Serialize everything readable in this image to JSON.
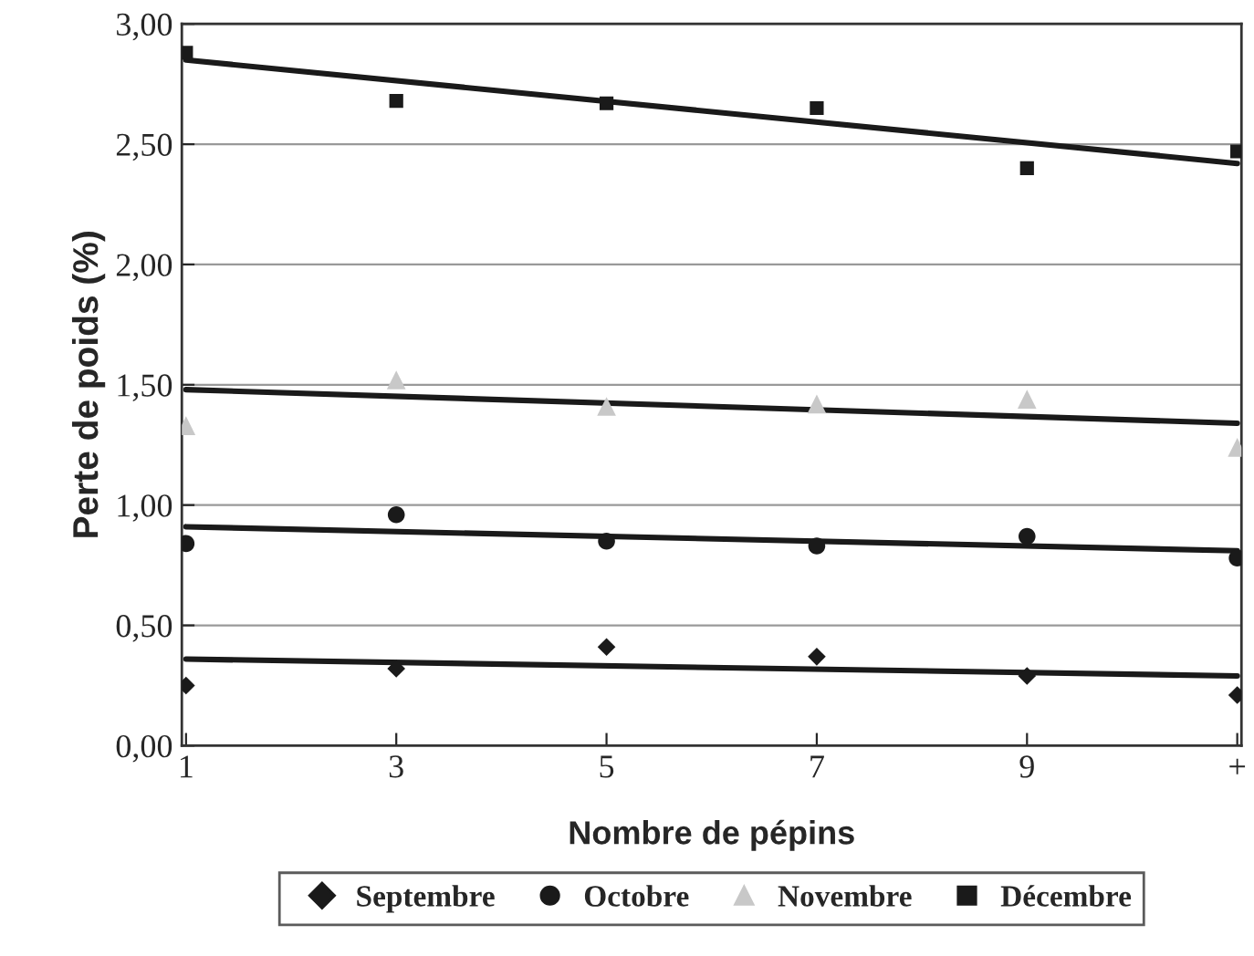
{
  "chart_data": {
    "type": "scatter",
    "xlabel": "Nombre de pépins",
    "ylabel": "Perte de poids (%)",
    "categories": [
      "1",
      "3",
      "5",
      "7",
      "9",
      "+"
    ],
    "series": [
      {
        "name": "Septembre",
        "color": "#1a1a1a",
        "marker": "diamond",
        "values": [
          0.25,
          0.32,
          0.41,
          0.37,
          0.29,
          0.21
        ]
      },
      {
        "name": "Octobre",
        "color": "#1a1a1a",
        "marker": "circle",
        "values": [
          0.84,
          0.96,
          0.85,
          0.83,
          0.87,
          0.78
        ]
      },
      {
        "name": "Novembre",
        "color": "#c8c8c8",
        "marker": "triangle",
        "values": [
          1.33,
          1.52,
          1.41,
          1.42,
          1.44,
          1.24
        ]
      },
      {
        "name": "Décembre",
        "color": "#1a1a1a",
        "marker": "square",
        "values": [
          2.88,
          2.68,
          2.67,
          2.65,
          2.4,
          2.47
        ]
      },
      {
        "type": "line",
        "color": "#1a1a1a",
        "x": [
          "1",
          "+"
        ],
        "values": [
          0.36,
          0.29
        ]
      },
      {
        "type": "line",
        "color": "#1a1a1a",
        "x": [
          "1",
          "+"
        ],
        "values": [
          0.91,
          0.81
        ]
      },
      {
        "type": "line",
        "color": "#1a1a1a",
        "x": [
          "1",
          "+"
        ],
        "values": [
          1.48,
          1.34
        ]
      },
      {
        "type": "line",
        "color": "#1a1a1a",
        "x": [
          "1",
          "+"
        ],
        "values": [
          2.85,
          2.42
        ]
      }
    ],
    "ylim": [
      0,
      3
    ],
    "yticks": [
      {
        "value": 0,
        "label": "0,00"
      },
      {
        "value": 0.5,
        "label": "0,50"
      },
      {
        "value": 1,
        "label": "1,00"
      },
      {
        "value": 1.5,
        "label": "1,50"
      },
      {
        "value": 2,
        "label": "2,00"
      },
      {
        "value": 2.5,
        "label": "2,50"
      },
      {
        "value": 3,
        "label": "3,00"
      }
    ],
    "grid": "y",
    "legend": "bottom"
  }
}
